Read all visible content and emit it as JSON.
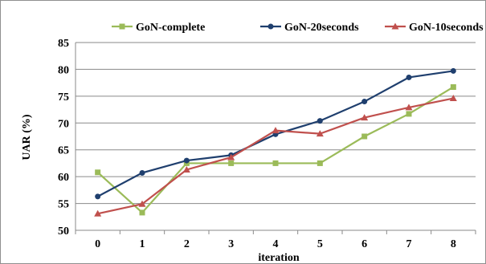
{
  "chart_data": {
    "type": "line",
    "xlabel": "iteration",
    "ylabel": "UAR (%)",
    "x": [
      0,
      1,
      2,
      3,
      4,
      5,
      6,
      7,
      8
    ],
    "xlim": [
      0,
      8
    ],
    "ylim": [
      50,
      85
    ],
    "yticks": [
      50,
      55,
      60,
      65,
      70,
      75,
      80,
      85
    ],
    "grid": true,
    "legend_position": "top",
    "series": [
      {
        "name": "GoN-complete",
        "color": "#9bbb59",
        "marker": "square",
        "values": [
          60.8,
          53.3,
          62.5,
          62.5,
          62.5,
          62.5,
          67.5,
          71.7,
          76.7
        ]
      },
      {
        "name": "GoN-20seconds",
        "color": "#1f3f6e",
        "marker": "circle",
        "values": [
          56.3,
          60.7,
          63.0,
          64.0,
          67.9,
          70.4,
          74.0,
          78.5,
          79.7
        ]
      },
      {
        "name": "GoN-10seconds",
        "color": "#c0504d",
        "marker": "triangle",
        "values": [
          53.1,
          54.9,
          61.3,
          63.6,
          68.6,
          68.0,
          71.0,
          72.9,
          74.6
        ]
      }
    ]
  }
}
